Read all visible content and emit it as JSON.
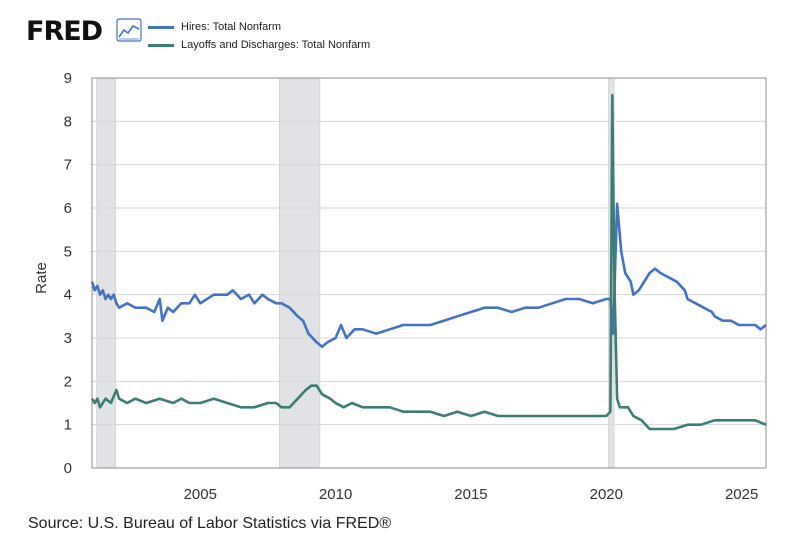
{
  "logo": {
    "text": "FRED",
    "icon": "fred-graph-icon"
  },
  "source": "Source: U.S. Bureau of Labor Statistics via FRED®",
  "colors": {
    "hires": "#4472c4",
    "layoffs": "#3d7e74",
    "recession": "#e1e2e6",
    "grid": "#d6d6d6",
    "frame": "#8e8e8e"
  },
  "chart_data": {
    "type": "line",
    "title": "",
    "xlabel": "",
    "ylabel": "Rate",
    "xlim": [
      2001.0,
      2025.9
    ],
    "ylim": [
      0,
      9
    ],
    "yticks": [
      0,
      1,
      2,
      3,
      4,
      5,
      6,
      7,
      8,
      9
    ],
    "xticks": [
      2005,
      2010,
      2015,
      2020,
      2025
    ],
    "grid": true,
    "legend": "top-left",
    "recessions": [
      [
        2001.17,
        2001.87
      ],
      [
        2007.92,
        2009.42
      ],
      [
        2020.08,
        2020.29
      ]
    ],
    "series": [
      {
        "name": "Hires: Total Nonfarm",
        "color": "#4472c4",
        "points": [
          [
            2001.0,
            4.3
          ],
          [
            2001.1,
            4.1
          ],
          [
            2001.2,
            4.2
          ],
          [
            2001.3,
            4.0
          ],
          [
            2001.4,
            4.1
          ],
          [
            2001.5,
            3.9
          ],
          [
            2001.6,
            4.0
          ],
          [
            2001.7,
            3.9
          ],
          [
            2001.8,
            4.0
          ],
          [
            2001.9,
            3.8
          ],
          [
            2002.0,
            3.7
          ],
          [
            2002.3,
            3.8
          ],
          [
            2002.6,
            3.7
          ],
          [
            2003.0,
            3.7
          ],
          [
            2003.3,
            3.6
          ],
          [
            2003.5,
            3.9
          ],
          [
            2003.6,
            3.4
          ],
          [
            2003.8,
            3.7
          ],
          [
            2004.0,
            3.6
          ],
          [
            2004.3,
            3.8
          ],
          [
            2004.6,
            3.8
          ],
          [
            2004.8,
            4.0
          ],
          [
            2005.0,
            3.8
          ],
          [
            2005.5,
            4.0
          ],
          [
            2006.0,
            4.0
          ],
          [
            2006.2,
            4.1
          ],
          [
            2006.5,
            3.9
          ],
          [
            2006.8,
            4.0
          ],
          [
            2007.0,
            3.8
          ],
          [
            2007.3,
            4.0
          ],
          [
            2007.5,
            3.9
          ],
          [
            2007.8,
            3.8
          ],
          [
            2008.0,
            3.8
          ],
          [
            2008.3,
            3.7
          ],
          [
            2008.6,
            3.5
          ],
          [
            2008.8,
            3.4
          ],
          [
            2009.0,
            3.1
          ],
          [
            2009.3,
            2.9
          ],
          [
            2009.5,
            2.8
          ],
          [
            2009.7,
            2.9
          ],
          [
            2010.0,
            3.0
          ],
          [
            2010.2,
            3.3
          ],
          [
            2010.4,
            3.0
          ],
          [
            2010.7,
            3.2
          ],
          [
            2011.0,
            3.2
          ],
          [
            2011.5,
            3.1
          ],
          [
            2012.0,
            3.2
          ],
          [
            2012.5,
            3.3
          ],
          [
            2013.0,
            3.3
          ],
          [
            2013.5,
            3.3
          ],
          [
            2014.0,
            3.4
          ],
          [
            2014.5,
            3.5
          ],
          [
            2015.0,
            3.6
          ],
          [
            2015.5,
            3.7
          ],
          [
            2016.0,
            3.7
          ],
          [
            2016.5,
            3.6
          ],
          [
            2017.0,
            3.7
          ],
          [
            2017.5,
            3.7
          ],
          [
            2018.0,
            3.8
          ],
          [
            2018.5,
            3.9
          ],
          [
            2019.0,
            3.9
          ],
          [
            2019.5,
            3.8
          ],
          [
            2020.0,
            3.9
          ],
          [
            2020.15,
            3.9
          ],
          [
            2020.25,
            3.1
          ],
          [
            2020.4,
            6.1
          ],
          [
            2020.55,
            5.0
          ],
          [
            2020.7,
            4.5
          ],
          [
            2020.9,
            4.3
          ],
          [
            2021.0,
            4.0
          ],
          [
            2021.2,
            4.1
          ],
          [
            2021.4,
            4.3
          ],
          [
            2021.6,
            4.5
          ],
          [
            2021.8,
            4.6
          ],
          [
            2022.0,
            4.5
          ],
          [
            2022.3,
            4.4
          ],
          [
            2022.6,
            4.3
          ],
          [
            2022.9,
            4.1
          ],
          [
            2023.0,
            3.9
          ],
          [
            2023.3,
            3.8
          ],
          [
            2023.6,
            3.7
          ],
          [
            2023.9,
            3.6
          ],
          [
            2024.0,
            3.5
          ],
          [
            2024.3,
            3.4
          ],
          [
            2024.6,
            3.4
          ],
          [
            2024.9,
            3.3
          ],
          [
            2025.2,
            3.3
          ],
          [
            2025.5,
            3.3
          ],
          [
            2025.7,
            3.2
          ],
          [
            2025.9,
            3.3
          ]
        ]
      },
      {
        "name": "Layoffs and Discharges: Total Nonfarm",
        "color": "#3d7e74",
        "points": [
          [
            2001.0,
            1.6
          ],
          [
            2001.1,
            1.5
          ],
          [
            2001.2,
            1.6
          ],
          [
            2001.3,
            1.4
          ],
          [
            2001.5,
            1.6
          ],
          [
            2001.7,
            1.5
          ],
          [
            2001.9,
            1.8
          ],
          [
            2002.0,
            1.6
          ],
          [
            2002.3,
            1.5
          ],
          [
            2002.6,
            1.6
          ],
          [
            2003.0,
            1.5
          ],
          [
            2003.5,
            1.6
          ],
          [
            2004.0,
            1.5
          ],
          [
            2004.3,
            1.6
          ],
          [
            2004.6,
            1.5
          ],
          [
            2005.0,
            1.5
          ],
          [
            2005.5,
            1.6
          ],
          [
            2006.0,
            1.5
          ],
          [
            2006.5,
            1.4
          ],
          [
            2007.0,
            1.4
          ],
          [
            2007.5,
            1.5
          ],
          [
            2007.8,
            1.5
          ],
          [
            2008.0,
            1.4
          ],
          [
            2008.3,
            1.4
          ],
          [
            2008.6,
            1.6
          ],
          [
            2008.9,
            1.8
          ],
          [
            2009.1,
            1.9
          ],
          [
            2009.3,
            1.9
          ],
          [
            2009.5,
            1.7
          ],
          [
            2009.8,
            1.6
          ],
          [
            2010.0,
            1.5
          ],
          [
            2010.3,
            1.4
          ],
          [
            2010.6,
            1.5
          ],
          [
            2011.0,
            1.4
          ],
          [
            2011.5,
            1.4
          ],
          [
            2012.0,
            1.4
          ],
          [
            2012.5,
            1.3
          ],
          [
            2013.0,
            1.3
          ],
          [
            2013.5,
            1.3
          ],
          [
            2014.0,
            1.2
          ],
          [
            2014.5,
            1.3
          ],
          [
            2015.0,
            1.2
          ],
          [
            2015.5,
            1.3
          ],
          [
            2016.0,
            1.2
          ],
          [
            2016.5,
            1.2
          ],
          [
            2017.0,
            1.2
          ],
          [
            2017.5,
            1.2
          ],
          [
            2018.0,
            1.2
          ],
          [
            2018.5,
            1.2
          ],
          [
            2019.0,
            1.2
          ],
          [
            2019.5,
            1.2
          ],
          [
            2020.0,
            1.2
          ],
          [
            2020.15,
            1.3
          ],
          [
            2020.22,
            8.6
          ],
          [
            2020.3,
            4.3
          ],
          [
            2020.4,
            1.6
          ],
          [
            2020.5,
            1.4
          ],
          [
            2020.8,
            1.4
          ],
          [
            2021.0,
            1.2
          ],
          [
            2021.3,
            1.1
          ],
          [
            2021.6,
            0.9
          ],
          [
            2022.0,
            0.9
          ],
          [
            2022.5,
            0.9
          ],
          [
            2023.0,
            1.0
          ],
          [
            2023.5,
            1.0
          ],
          [
            2024.0,
            1.1
          ],
          [
            2024.5,
            1.1
          ],
          [
            2025.0,
            1.1
          ],
          [
            2025.5,
            1.1
          ],
          [
            2025.9,
            1.0
          ]
        ]
      }
    ]
  }
}
